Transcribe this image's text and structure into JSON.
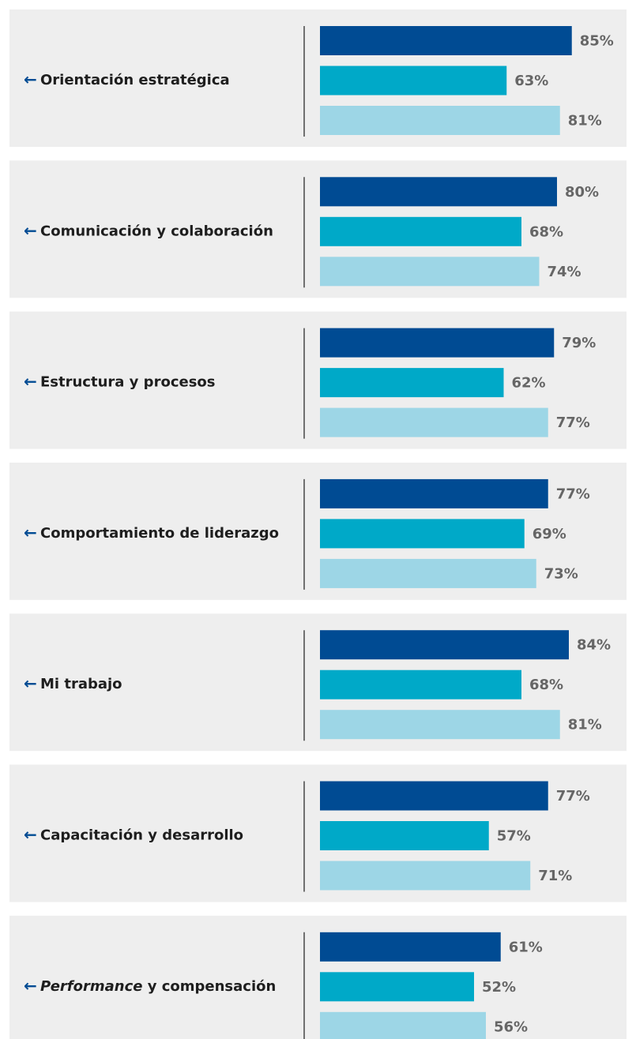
{
  "chart_data": {
    "type": "bar",
    "categories": [
      "Orientación estratégica",
      "Comunicación y colaboración",
      "Estructura y procesos",
      "Comportamiento de liderazgo",
      "Mi trabajo",
      "Capacitación y desarrollo",
      [
        {
          "text": "Performance",
          "italic": true
        },
        {
          "text": " y compensación"
        }
      ]
    ],
    "series": [
      {
        "color": "#004b93",
        "values": [
          85,
          80,
          79,
          77,
          84,
          77,
          61
        ],
        "value_labels": [
          "85%",
          "80%",
          "79%",
          "77%",
          "84%",
          "77%",
          "61%"
        ]
      },
      {
        "color": "#00a9c8",
        "values": [
          63,
          68,
          62,
          69,
          68,
          57,
          52
        ],
        "value_labels": [
          "63%",
          "68%",
          "62%",
          "69%",
          "68%",
          "57%",
          "52%"
        ]
      },
      {
        "color": "#9dd6e6",
        "values": [
          81,
          74,
          77,
          73,
          81,
          71,
          56
        ],
        "value_labels": [
          "81%",
          "74%",
          "77%",
          "73%",
          "81%",
          "71%",
          "56%"
        ]
      }
    ]
  }
}
